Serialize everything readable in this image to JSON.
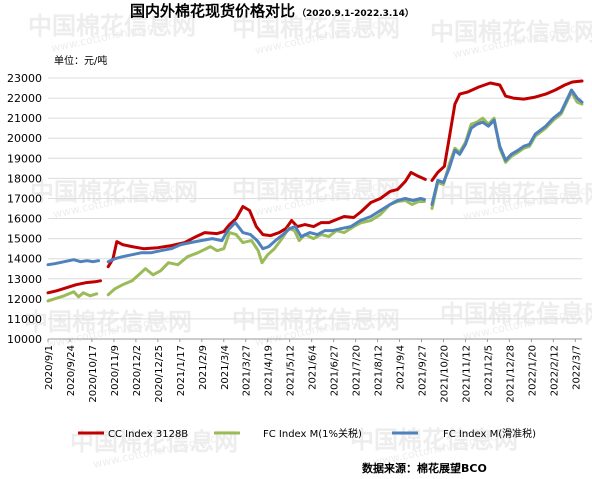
{
  "chart_data": {
    "type": "line",
    "title": "国内外棉花现货价格对比",
    "subtitle": "（2020.9.1-2022.3.14）",
    "ylabel": "单位：元/吨",
    "source": "数据来源：棉花展望BCO",
    "ylim": [
      10000,
      23000
    ],
    "yticks": [
      10000,
      11000,
      12000,
      13000,
      14000,
      15000,
      16000,
      17000,
      18000,
      19000,
      20000,
      21000,
      22000,
      23000
    ],
    "xticks": [
      "2020/9/1",
      "2020/9/24",
      "2020/10/17",
      "2020/11/9",
      "2020/12/2",
      "2020/12/25",
      "2021/1/17",
      "2021/2/9",
      "2021/3/4",
      "2021/3/27",
      "2021/4/19",
      "2021/5/12",
      "2021/6/4",
      "2021/6/27",
      "2021/7/20",
      "2021/8/12",
      "2021/9/4",
      "2021/9/27",
      "2021/10/20",
      "2021/11/12",
      "2021/12/5",
      "2021/12/28",
      "2022/1/20",
      "2022/2/12",
      "2022/3/7"
    ],
    "x_range": [
      "2020-09-01",
      "2022-03-14"
    ],
    "grid": "horizontal",
    "legend_position": "bottom",
    "series": [
      {
        "name": "CC Index 3128B",
        "color": "#c00000",
        "points": [
          [
            "2020-09-01",
            12300
          ],
          [
            "2020-09-10",
            12400
          ],
          [
            "2020-09-20",
            12550
          ],
          [
            "2020-09-30",
            12700
          ],
          [
            "2020-10-10",
            12800
          ],
          [
            "2020-10-20",
            12850
          ],
          [
            "2020-10-26",
            12900
          ],
          [
            "2020-11-01",
            null
          ],
          [
            "2020-11-03",
            13600
          ],
          [
            "2020-11-08",
            14000
          ],
          [
            "2020-11-12",
            14850
          ],
          [
            "2020-11-18",
            14700
          ],
          [
            "2020-11-28",
            14600
          ],
          [
            "2020-12-10",
            14500
          ],
          [
            "2020-12-25",
            14550
          ],
          [
            "2021-01-08",
            14650
          ],
          [
            "2021-01-22",
            14800
          ],
          [
            "2021-02-03",
            15100
          ],
          [
            "2021-02-12",
            15300
          ],
          [
            "2021-02-25",
            15250
          ],
          [
            "2021-03-04",
            15350
          ],
          [
            "2021-03-10",
            15700
          ],
          [
            "2021-03-17",
            16000
          ],
          [
            "2021-03-24",
            16600
          ],
          [
            "2021-03-31",
            16400
          ],
          [
            "2021-04-07",
            15600
          ],
          [
            "2021-04-14",
            15200
          ],
          [
            "2021-04-22",
            15150
          ],
          [
            "2021-05-01",
            15300
          ],
          [
            "2021-05-08",
            15500
          ],
          [
            "2021-05-14",
            15900
          ],
          [
            "2021-05-20",
            15600
          ],
          [
            "2021-05-28",
            15700
          ],
          [
            "2021-06-06",
            15600
          ],
          [
            "2021-06-14",
            15800
          ],
          [
            "2021-06-22",
            15800
          ],
          [
            "2021-06-30",
            15950
          ],
          [
            "2021-07-08",
            16100
          ],
          [
            "2021-07-18",
            16050
          ],
          [
            "2021-07-26",
            16350
          ],
          [
            "2021-08-05",
            16800
          ],
          [
            "2021-08-15",
            17000
          ],
          [
            "2021-08-25",
            17350
          ],
          [
            "2021-09-02",
            17450
          ],
          [
            "2021-09-10",
            17850
          ],
          [
            "2021-09-16",
            18300
          ],
          [
            "2021-09-24",
            18100
          ],
          [
            "2021-10-01",
            17950
          ],
          [
            "2021-10-06",
            null
          ],
          [
            "2021-10-08",
            17900
          ],
          [
            "2021-10-14",
            18300
          ],
          [
            "2021-10-21",
            18600
          ],
          [
            "2021-10-26",
            20000
          ],
          [
            "2021-11-01",
            21700
          ],
          [
            "2021-11-06",
            22200
          ],
          [
            "2021-11-14",
            22300
          ],
          [
            "2021-11-26",
            22550
          ],
          [
            "2021-12-08",
            22750
          ],
          [
            "2021-12-18",
            22650
          ],
          [
            "2021-12-24",
            22100
          ],
          [
            "2022-01-01",
            22000
          ],
          [
            "2022-01-12",
            21950
          ],
          [
            "2022-01-24",
            22050
          ],
          [
            "2022-02-04",
            22200
          ],
          [
            "2022-02-14",
            22400
          ],
          [
            "2022-02-24",
            22650
          ],
          [
            "2022-03-04",
            22800
          ],
          [
            "2022-03-14",
            22850
          ]
        ]
      },
      {
        "name": "FC Index M(1%关税)",
        "color": "#9bbb59",
        "points": [
          [
            "2020-09-01",
            11900
          ],
          [
            "2020-09-08",
            12000
          ],
          [
            "2020-09-18",
            12150
          ],
          [
            "2020-09-28",
            12350
          ],
          [
            "2020-10-03",
            12100
          ],
          [
            "2020-10-08",
            12300
          ],
          [
            "2020-10-15",
            12150
          ],
          [
            "2020-10-22",
            12250
          ],
          [
            "2020-10-27",
            null
          ],
          [
            "2020-11-03",
            12200
          ],
          [
            "2020-11-10",
            12500
          ],
          [
            "2020-11-18",
            12700
          ],
          [
            "2020-11-28",
            12900
          ],
          [
            "2020-12-05",
            13200
          ],
          [
            "2020-12-12",
            13500
          ],
          [
            "2020-12-20",
            13200
          ],
          [
            "2020-12-28",
            13400
          ],
          [
            "2021-01-05",
            13800
          ],
          [
            "2021-01-15",
            13700
          ],
          [
            "2021-01-25",
            14100
          ],
          [
            "2021-02-05",
            14300
          ],
          [
            "2021-02-18",
            14600
          ],
          [
            "2021-02-25",
            14400
          ],
          [
            "2021-03-04",
            14500
          ],
          [
            "2021-03-10",
            15300
          ],
          [
            "2021-03-17",
            15200
          ],
          [
            "2021-03-24",
            14800
          ],
          [
            "2021-04-02",
            14900
          ],
          [
            "2021-04-09",
            14400
          ],
          [
            "2021-04-13",
            13800
          ],
          [
            "2021-04-19",
            14200
          ],
          [
            "2021-04-26",
            14500
          ],
          [
            "2021-05-04",
            15000
          ],
          [
            "2021-05-11",
            15500
          ],
          [
            "2021-05-17",
            15400
          ],
          [
            "2021-05-22",
            14900
          ],
          [
            "2021-05-28",
            15200
          ],
          [
            "2021-06-06",
            15000
          ],
          [
            "2021-06-14",
            15200
          ],
          [
            "2021-06-22",
            15100
          ],
          [
            "2021-06-30",
            15400
          ],
          [
            "2021-07-08",
            15300
          ],
          [
            "2021-07-18",
            15600
          ],
          [
            "2021-07-26",
            15800
          ],
          [
            "2021-08-05",
            15900
          ],
          [
            "2021-08-15",
            16200
          ],
          [
            "2021-08-25",
            16700
          ],
          [
            "2021-09-02",
            16850
          ],
          [
            "2021-09-10",
            16900
          ],
          [
            "2021-09-17",
            16700
          ],
          [
            "2021-09-24",
            16850
          ],
          [
            "2021-09-30",
            16850
          ],
          [
            "2021-10-04",
            null
          ],
          [
            "2021-10-08",
            16500
          ],
          [
            "2021-10-14",
            17800
          ],
          [
            "2021-10-20",
            17700
          ],
          [
            "2021-10-26",
            18700
          ],
          [
            "2021-11-01",
            19500
          ],
          [
            "2021-11-06",
            19300
          ],
          [
            "2021-11-12",
            19800
          ],
          [
            "2021-11-18",
            20700
          ],
          [
            "2021-11-24",
            20800
          ],
          [
            "2021-11-30",
            21000
          ],
          [
            "2021-12-06",
            20700
          ],
          [
            "2021-12-12",
            21000
          ],
          [
            "2021-12-18",
            19500
          ],
          [
            "2021-12-24",
            18800
          ],
          [
            "2021-12-30",
            19100
          ],
          [
            "2022-01-06",
            19300
          ],
          [
            "2022-01-12",
            19500
          ],
          [
            "2022-01-18",
            19600
          ],
          [
            "2022-01-24",
            20100
          ],
          [
            "2022-02-04",
            20500
          ],
          [
            "2022-02-12",
            20900
          ],
          [
            "2022-02-20",
            21200
          ],
          [
            "2022-02-26",
            21800
          ],
          [
            "2022-03-03",
            22300
          ],
          [
            "2022-03-09",
            21800
          ],
          [
            "2022-03-14",
            21700
          ]
        ]
      },
      {
        "name": "FC Index M(滑准税)",
        "color": "#4f81bd",
        "points": [
          [
            "2020-09-01",
            13700
          ],
          [
            "2020-09-08",
            13750
          ],
          [
            "2020-09-18",
            13850
          ],
          [
            "2020-09-28",
            13950
          ],
          [
            "2020-10-05",
            13850
          ],
          [
            "2020-10-12",
            13900
          ],
          [
            "2020-10-18",
            13850
          ],
          [
            "2020-10-24",
            13900
          ],
          [
            "2020-10-28",
            null
          ],
          [
            "2020-11-03",
            13850
          ],
          [
            "2020-11-10",
            14000
          ],
          [
            "2020-11-18",
            14100
          ],
          [
            "2020-11-28",
            14200
          ],
          [
            "2020-12-08",
            14300
          ],
          [
            "2020-12-18",
            14300
          ],
          [
            "2020-12-28",
            14400
          ],
          [
            "2021-01-08",
            14500
          ],
          [
            "2021-01-18",
            14700
          ],
          [
            "2021-01-28",
            14800
          ],
          [
            "2021-02-08",
            14900
          ],
          [
            "2021-02-20",
            15000
          ],
          [
            "2021-03-02",
            14900
          ],
          [
            "2021-03-08",
            15400
          ],
          [
            "2021-03-16",
            15800
          ],
          [
            "2021-03-24",
            15300
          ],
          [
            "2021-04-01",
            15200
          ],
          [
            "2021-04-08",
            14900
          ],
          [
            "2021-04-14",
            14500
          ],
          [
            "2021-04-20",
            14600
          ],
          [
            "2021-04-27",
            14900
          ],
          [
            "2021-05-05",
            15200
          ],
          [
            "2021-05-12",
            15500
          ],
          [
            "2021-05-18",
            15600
          ],
          [
            "2021-05-24",
            15100
          ],
          [
            "2021-06-02",
            15300
          ],
          [
            "2021-06-10",
            15200
          ],
          [
            "2021-06-18",
            15400
          ],
          [
            "2021-06-26",
            15400
          ],
          [
            "2021-07-05",
            15500
          ],
          [
            "2021-07-15",
            15600
          ],
          [
            "2021-07-25",
            15900
          ],
          [
            "2021-08-05",
            16100
          ],
          [
            "2021-08-15",
            16400
          ],
          [
            "2021-08-25",
            16700
          ],
          [
            "2021-09-02",
            16900
          ],
          [
            "2021-09-10",
            17000
          ],
          [
            "2021-09-18",
            16900
          ],
          [
            "2021-09-26",
            17000
          ],
          [
            "2021-09-30",
            16950
          ],
          [
            "2021-10-04",
            null
          ],
          [
            "2021-10-08",
            16700
          ],
          [
            "2021-10-14",
            17900
          ],
          [
            "2021-10-20",
            17800
          ],
          [
            "2021-10-26",
            18500
          ],
          [
            "2021-11-01",
            19400
          ],
          [
            "2021-11-06",
            19200
          ],
          [
            "2021-11-12",
            19700
          ],
          [
            "2021-11-18",
            20500
          ],
          [
            "2021-11-24",
            20700
          ],
          [
            "2021-11-30",
            20800
          ],
          [
            "2021-12-06",
            20600
          ],
          [
            "2021-12-12",
            20900
          ],
          [
            "2021-12-18",
            19600
          ],
          [
            "2021-12-24",
            18900
          ],
          [
            "2021-12-30",
            19200
          ],
          [
            "2022-01-06",
            19400
          ],
          [
            "2022-01-12",
            19600
          ],
          [
            "2022-01-18",
            19700
          ],
          [
            "2022-01-24",
            20200
          ],
          [
            "2022-02-04",
            20600
          ],
          [
            "2022-02-12",
            21000
          ],
          [
            "2022-02-20",
            21300
          ],
          [
            "2022-02-26",
            21900
          ],
          [
            "2022-03-03",
            22400
          ],
          [
            "2022-03-09",
            22000
          ],
          [
            "2022-03-14",
            21800
          ]
        ]
      }
    ]
  },
  "watermark": {
    "text_cn": "中国棉花信息网",
    "text_en": "www.cottonchina.org.cn"
  }
}
